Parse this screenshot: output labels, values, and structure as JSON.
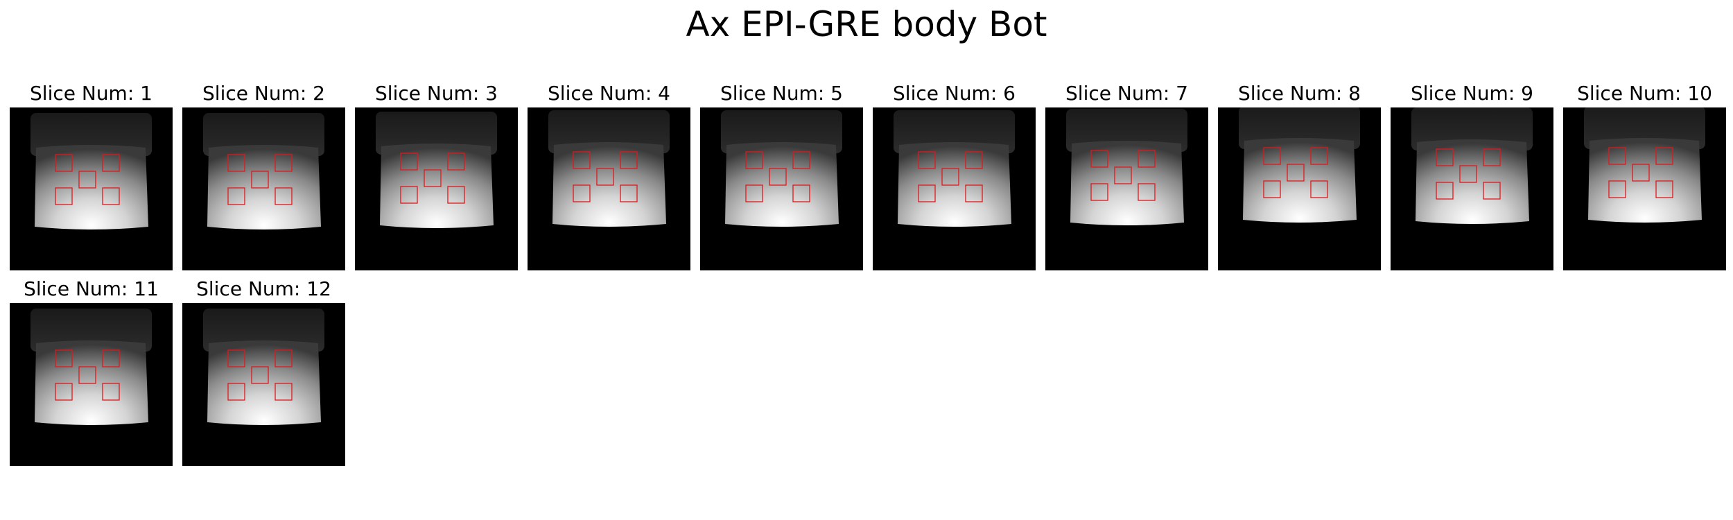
{
  "figure": {
    "title": "Ax EPI-GRE body Bot"
  },
  "colors": {
    "background": "#ffffff",
    "image_background": "#000000",
    "roi_box": "#e0181b"
  },
  "slices": [
    {
      "label": "Slice Num: 1"
    },
    {
      "label": "Slice Num: 2"
    },
    {
      "label": "Slice Num: 3"
    },
    {
      "label": "Slice Num: 4"
    },
    {
      "label": "Slice Num: 5"
    },
    {
      "label": "Slice Num: 6"
    },
    {
      "label": "Slice Num: 7"
    },
    {
      "label": "Slice Num: 8"
    },
    {
      "label": "Slice Num: 9"
    },
    {
      "label": "Slice Num: 10"
    },
    {
      "label": "Slice Num: 11"
    },
    {
      "label": "Slice Num: 12"
    }
  ]
}
